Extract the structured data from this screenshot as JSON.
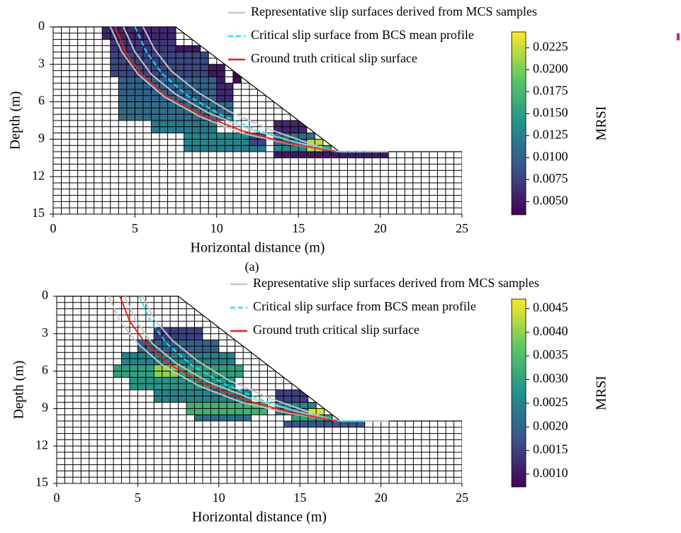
{
  "chart_data": [
    {
      "type": "heatmap",
      "caption": "(a)",
      "xlabel": "Horizontal distance (m)",
      "ylabel": "Depth (m)",
      "xlim": [
        0,
        25
      ],
      "ylim": [
        15,
        0
      ],
      "xticks": [
        0,
        5,
        10,
        15,
        20,
        25
      ],
      "yticks": [
        0,
        3,
        6,
        9,
        12,
        15
      ],
      "slope": {
        "x": [
          0,
          7.5,
          17.5,
          25
        ],
        "depth": [
          0,
          0,
          10,
          10
        ]
      },
      "cells": [
        [
          3,
          7.5,
          0,
          1,
          0.006
        ],
        [
          3.5,
          7.5,
          1,
          2,
          0.007
        ],
        [
          7.5,
          9,
          1.5,
          3,
          0.005
        ],
        [
          3.5,
          9.5,
          2,
          4,
          0.008
        ],
        [
          9.5,
          10.5,
          3,
          4.5,
          0.005
        ],
        [
          11,
          11.5,
          3.5,
          4.5,
          0.004
        ],
        [
          4,
          10,
          4,
          6,
          0.01
        ],
        [
          10,
          11,
          4.5,
          6.5,
          0.006
        ],
        [
          4,
          11,
          6,
          7.5,
          0.011
        ],
        [
          6,
          10,
          7.5,
          8.5,
          0.012
        ],
        [
          8,
          12,
          8.5,
          9.5,
          0.013
        ],
        [
          12,
          13,
          8.5,
          9.5,
          0.008
        ],
        [
          8,
          13,
          9.5,
          10,
          0.012
        ],
        [
          13.5,
          15.5,
          7.5,
          8.5,
          0.006
        ],
        [
          13.5,
          16,
          8.5,
          9.5,
          0.011
        ],
        [
          15.5,
          16.5,
          9,
          10,
          0.022
        ],
        [
          13.5,
          15.5,
          9.5,
          10,
          0.013
        ],
        [
          16.5,
          17,
          9.5,
          10,
          0.016
        ],
        [
          13.5,
          20.5,
          10,
          10.5,
          0.005
        ]
      ],
      "series": [
        {
          "name": "Representative slip surfaces derived from MCS samples",
          "color": "#c8c8c8",
          "dash": false,
          "lines": [
            {
              "x": [
                3.5,
                4.2,
                5.2,
                6.8,
                9,
                11.5,
                14.5,
                17.5,
                20.5
              ],
              "depth": [
                0,
                2,
                3.8,
                5.6,
                7.2,
                8.5,
                9.4,
                10,
                10
              ]
            },
            {
              "x": [
                4.3,
                5,
                6,
                7.5,
                9.5,
                12,
                15,
                17.3
              ],
              "depth": [
                0,
                2,
                3.8,
                5.4,
                6.9,
                8.2,
                9.3,
                10
              ]
            },
            {
              "x": [
                5.5,
                6.2,
                7.2,
                8.8,
                10.8,
                13.2,
                15.8,
                17.2
              ],
              "depth": [
                0,
                1.8,
                3.5,
                5.2,
                6.8,
                8.2,
                9.4,
                10
              ]
            }
          ]
        },
        {
          "name": "Critical slip surface from BCS mean profile",
          "color": "#1fe3f0",
          "dash": true,
          "lines": [
            {
              "x": [
                5,
                5.7,
                6.7,
                8.2,
                10.2,
                12.7,
                15.5,
                17.5,
                19.5
              ],
              "depth": [
                0,
                2,
                3.8,
                5.5,
                7,
                8.4,
                9.5,
                10,
                10
              ]
            }
          ]
        },
        {
          "name": "Ground truth critical slip surface",
          "color": "#e8201c",
          "dash": false,
          "lines": [
            {
              "x": [
                3.8,
                4.4,
                5.4,
                6.9,
                9,
                11.5,
                14.3,
                17.3
              ],
              "depth": [
                0,
                2,
                3.8,
                5.5,
                7,
                8.3,
                9.3,
                10
              ]
            }
          ]
        }
      ],
      "colorbar": {
        "label": "MRSI",
        "clim": [
          0.0035,
          0.0243
        ],
        "ticks": [
          {
            "value": 0.005,
            "label": "0.0050"
          },
          0.0075,
          {
            "value": 0.01,
            "label": "0.0100"
          },
          0.0125,
          {
            "value": 0.015,
            "label": "0.0150"
          },
          0.0175,
          {
            "value": 0.02,
            "label": "0.0200"
          },
          0.0225
        ]
      }
    },
    {
      "type": "heatmap",
      "xlabel": "Horizontal distance (m)",
      "ylabel": "Depth (m)",
      "xlim": [
        0,
        25
      ],
      "ylim": [
        15,
        0
      ],
      "xticks": [
        0,
        5,
        10,
        15,
        20,
        25
      ],
      "yticks": [
        0,
        3,
        6,
        9,
        12,
        15
      ],
      "slope": {
        "x": [
          0,
          7.5,
          17.5,
          25
        ],
        "depth": [
          0,
          0,
          10,
          10
        ]
      },
      "cells": [
        [
          6,
          9,
          2.5,
          3.5,
          0.0015
        ],
        [
          5,
          10,
          3.5,
          4.5,
          0.002
        ],
        [
          4,
          11,
          4.5,
          5.5,
          0.0025
        ],
        [
          3.5,
          11.5,
          5.5,
          6.5,
          0.003
        ],
        [
          6,
          7.5,
          5.5,
          6.5,
          0.004
        ],
        [
          4.5,
          11,
          6.5,
          7.5,
          0.0028
        ],
        [
          6,
          12,
          7.5,
          8.5,
          0.0025
        ],
        [
          8,
          13,
          8.5,
          9.5,
          0.0033
        ],
        [
          8.5,
          12,
          9.5,
          10,
          0.0022
        ],
        [
          13.5,
          15.5,
          7.5,
          8.5,
          0.0015
        ],
        [
          13.5,
          16,
          8.5,
          9.5,
          0.0025
        ],
        [
          15.5,
          16.5,
          9,
          9.5,
          0.0045
        ],
        [
          14.5,
          17,
          9.5,
          10,
          0.003
        ],
        [
          14,
          19,
          10,
          10.5,
          0.0018
        ]
      ],
      "series": [
        {
          "name": "Representative slip surfaces derived from MCS samples",
          "color": "#c8c8c8",
          "dash": false,
          "lines": [
            {
              "x": [
                3.2,
                3.9,
                5,
                6.6,
                8.8,
                11.4,
                14.4,
                17.5,
                20.5
              ],
              "depth": [
                0,
                2,
                3.8,
                5.6,
                7.2,
                8.5,
                9.4,
                10,
                10
              ]
            },
            {
              "x": [
                4.2,
                4.9,
                5.9,
                7.4,
                9.4,
                12,
                15,
                17.3
              ],
              "depth": [
                0,
                2,
                3.8,
                5.4,
                6.9,
                8.2,
                9.3,
                10
              ]
            },
            {
              "x": [
                5.3,
                6,
                7.1,
                8.7,
                10.7,
                13.2,
                15.8,
                17.2
              ],
              "depth": [
                0,
                1.8,
                3.5,
                5.2,
                6.8,
                8.2,
                9.4,
                10
              ]
            }
          ]
        },
        {
          "name": "Critical slip surface from BCS mean profile",
          "color": "#1fe3f0",
          "dash": true,
          "lines": [
            {
              "x": [
                5.1,
                5.8,
                6.8,
                8.3,
                10.3,
                12.8,
                15.5,
                17.5,
                19
              ],
              "depth": [
                0,
                2,
                3.8,
                5.5,
                7,
                8.4,
                9.5,
                10,
                10
              ]
            }
          ]
        },
        {
          "name": "Ground truth critical slip surface",
          "color": "#e8201c",
          "dash": false,
          "lines": [
            {
              "x": [
                3.9,
                4.5,
                5.5,
                7,
                9.1,
                11.6,
                14.4,
                17.3
              ],
              "depth": [
                0,
                2,
                3.8,
                5.5,
                7,
                8.3,
                9.3,
                10
              ]
            }
          ]
        }
      ],
      "colorbar": {
        "label": "MRSI",
        "clim": [
          0.00073,
          0.0047
        ],
        "ticks": [
          {
            "value": 0.001,
            "label": "0.0010"
          },
          0.0015,
          {
            "value": 0.002,
            "label": "0.0020"
          },
          0.0025,
          {
            "value": 0.003,
            "label": "0.0030"
          },
          0.0035,
          {
            "value": 0.004,
            "label": "0.0040"
          },
          0.0045
        ]
      }
    }
  ]
}
